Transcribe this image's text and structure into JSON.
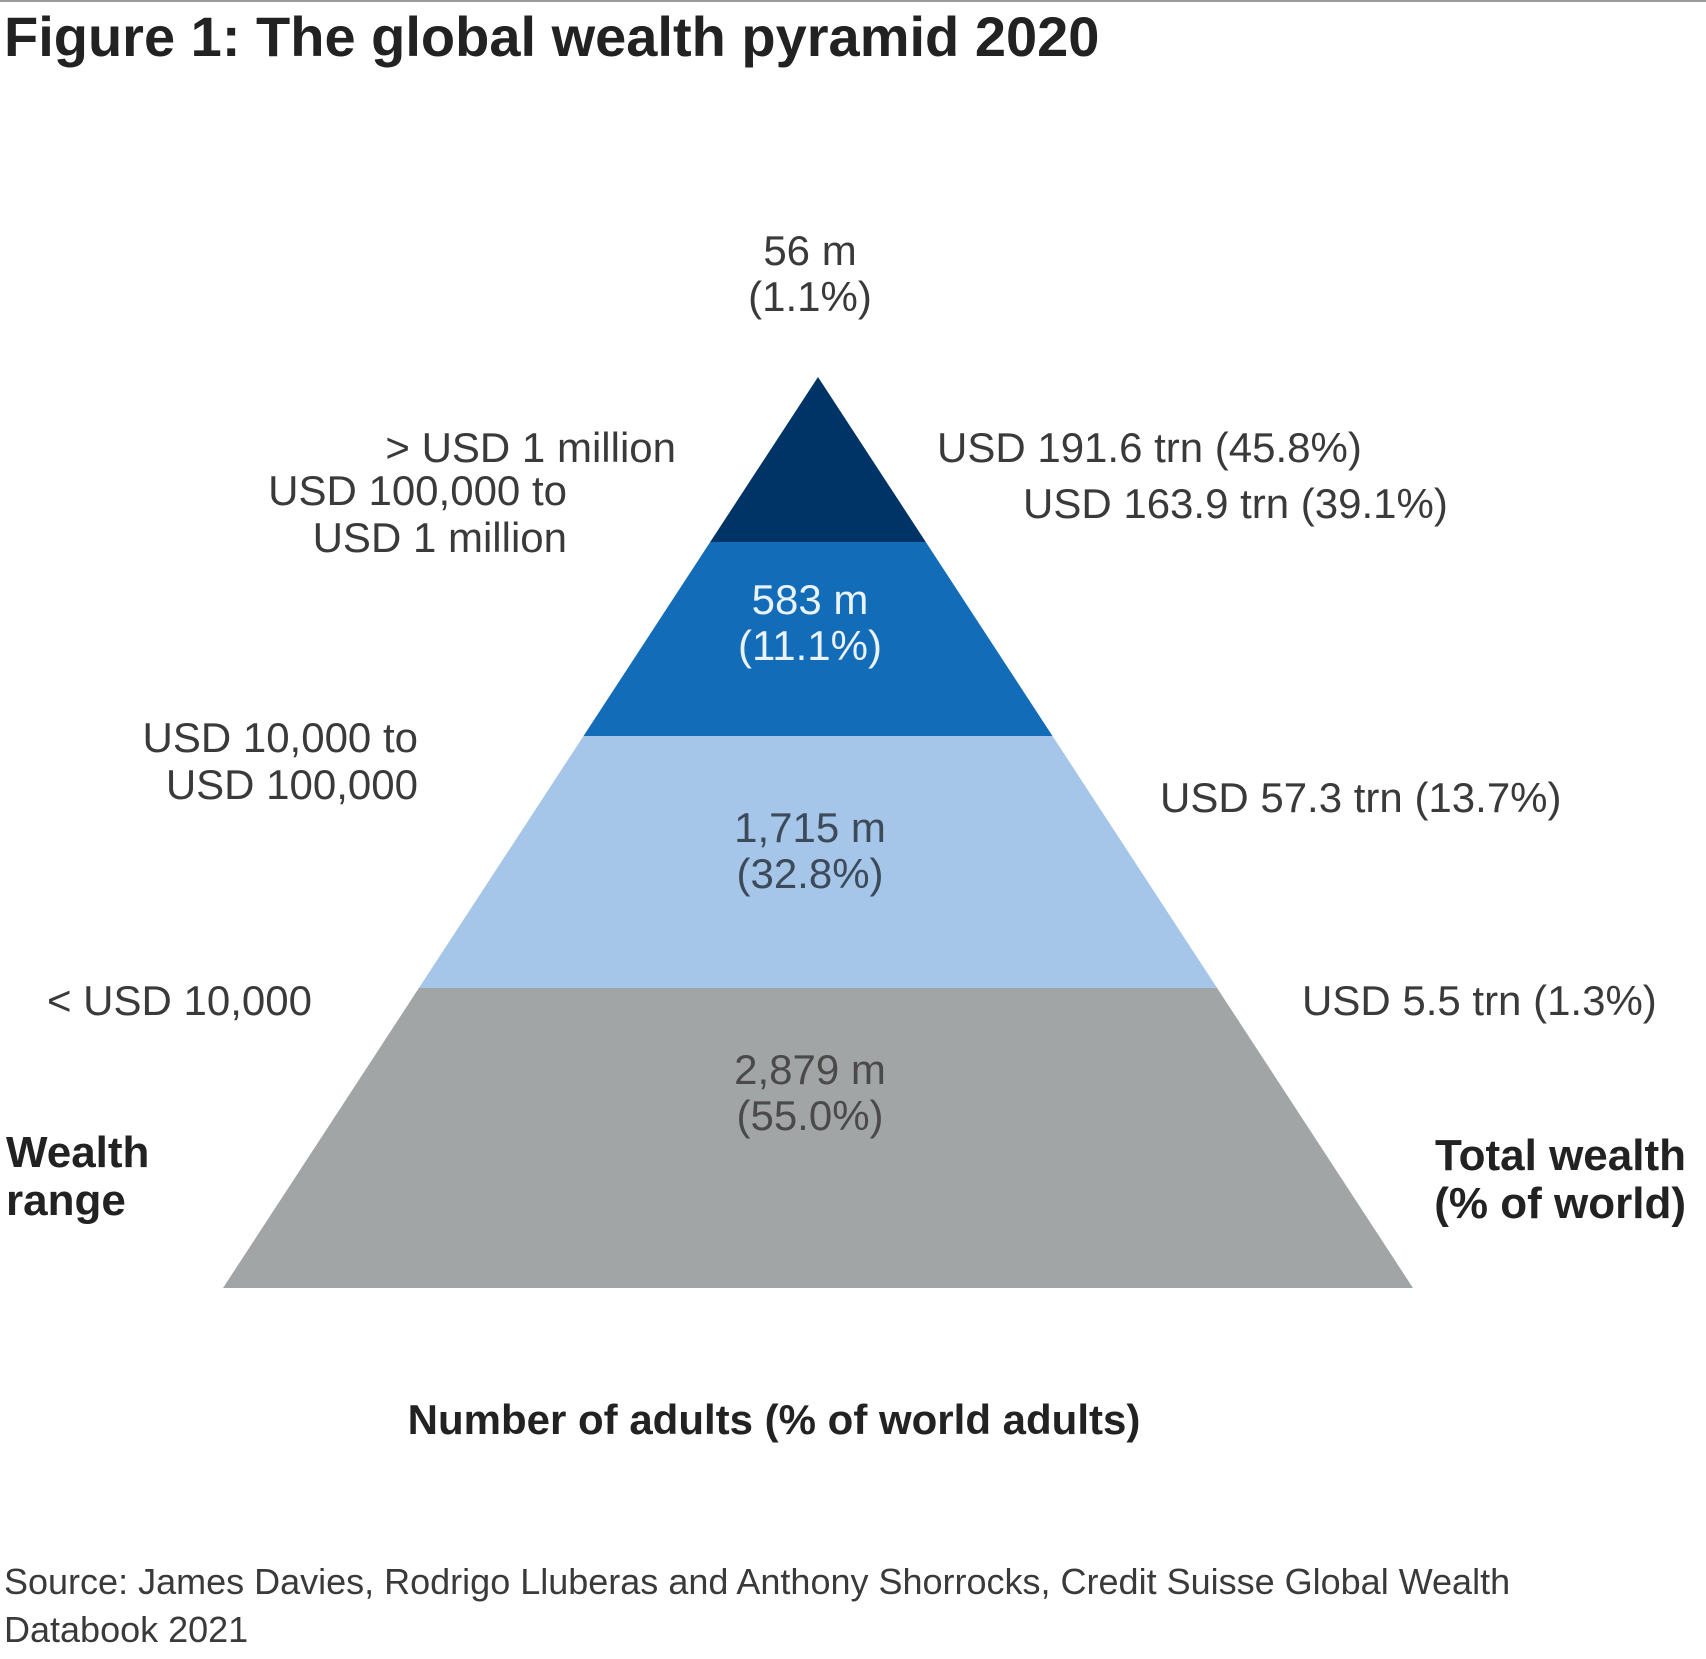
{
  "figure": {
    "title": "Figure 1: The global wealth pyramid 2020",
    "source": "Source: James Davies, Rodrigo Lluberas and Anthony Shorrocks, Credit Suisse Global Wealth Databook 2021"
  },
  "chart_data": {
    "type": "pyramid",
    "title": "Figure 1: The global wealth pyramid 2020",
    "xlabel": "Number of adults (% of world adults)",
    "left_axis_label": [
      "Wealth",
      "range"
    ],
    "right_axis_label": [
      "Total wealth",
      "(% of world)"
    ],
    "tiers": [
      {
        "wealth_range": "< USD 10,000",
        "wealth_range_lines": [
          "< USD 10,000"
        ],
        "adults_millions": 2879,
        "adults_pct": 55.0,
        "adults_label": [
          "2,879 m",
          "(55.0%)"
        ],
        "total_wealth_trn": 5.5,
        "total_wealth_pct": 1.3,
        "total_wealth_label": "USD 5.5 trn (1.3%)",
        "color": "#a2a5a6",
        "text_color": "#4a4a4a"
      },
      {
        "wealth_range": "USD 10,000 to USD 100,000",
        "wealth_range_lines": [
          "USD 10,000 to",
          "USD 100,000"
        ],
        "adults_millions": 1715,
        "adults_pct": 32.8,
        "adults_label": [
          "1,715 m",
          "(32.8%)"
        ],
        "total_wealth_trn": 57.3,
        "total_wealth_pct": 13.7,
        "total_wealth_label": "USD 57.3 trn (13.7%)",
        "color": "#a5c6e8",
        "text_color": "#3c4a5a"
      },
      {
        "wealth_range": "USD 100,000 to USD 1 million",
        "wealth_range_lines": [
          "USD 100,000 to",
          "USD 1 million"
        ],
        "adults_millions": 583,
        "adults_pct": 11.1,
        "adults_label": [
          "583 m",
          "(11.1%)"
        ],
        "total_wealth_trn": 163.9,
        "total_wealth_pct": 39.1,
        "total_wealth_label": "USD 163.9 trn (39.1%)",
        "color": "#136cb8",
        "text_color": "#eaf2fa"
      },
      {
        "wealth_range": "> USD 1 million",
        "wealth_range_lines": [
          "> USD 1 million"
        ],
        "adults_millions": 56,
        "adults_pct": 1.1,
        "adults_label": [
          "56 m",
          "(1.1%)"
        ],
        "total_wealth_trn": 191.6,
        "total_wealth_pct": 45.8,
        "total_wealth_label": "USD 191.6 trn (45.8%)",
        "color": "#003466",
        "text_color": "#3a3a3a"
      }
    ]
  }
}
